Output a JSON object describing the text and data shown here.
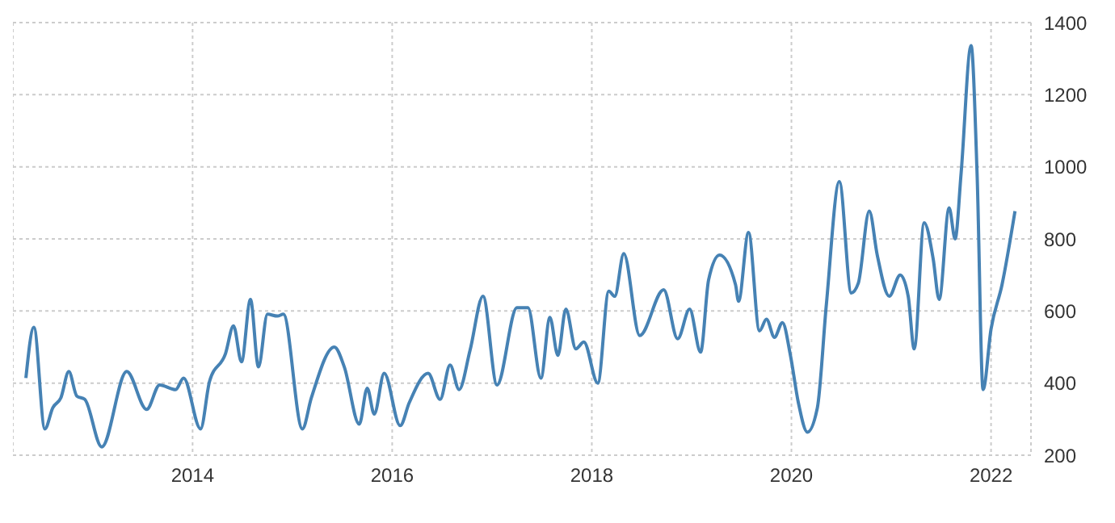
{
  "chart_data": {
    "type": "line",
    "x": [
      2012.33,
      2012.41,
      2012.52,
      2012.6,
      2012.68,
      2012.76,
      2012.84,
      2012.92,
      2013.09,
      2013.34,
      2013.54,
      2013.67,
      2013.83,
      2013.91,
      2014.08,
      2014.17,
      2014.33,
      2014.41,
      2014.49,
      2014.58,
      2014.66,
      2014.75,
      2014.85,
      2014.91,
      2015.1,
      2015.19,
      2015.42,
      2015.52,
      2015.67,
      2015.75,
      2015.82,
      2015.92,
      2016.08,
      2016.17,
      2016.36,
      2016.48,
      2016.58,
      2016.67,
      2016.78,
      2016.91,
      2017.05,
      2017.25,
      2017.36,
      2017.49,
      2017.58,
      2017.66,
      2017.74,
      2017.84,
      2017.92,
      2018.06,
      2018.17,
      2018.23,
      2018.32,
      2018.48,
      2018.72,
      2018.86,
      2018.98,
      2019.09,
      2019.17,
      2019.28,
      2019.44,
      2019.47,
      2019.57,
      2019.68,
      2019.75,
      2019.83,
      2019.91,
      2019.99,
      2020.07,
      2020.16,
      2020.26,
      2020.35,
      2020.48,
      2020.6,
      2020.67,
      2020.78,
      2020.86,
      2020.98,
      2021.09,
      2021.17,
      2021.23,
      2021.33,
      2021.42,
      2021.48,
      2021.58,
      2021.64,
      2021.7,
      2021.8,
      2021.86,
      2021.92,
      2022,
      2022.11,
      2022.24
    ],
    "series": [
      {
        "color": "#4682b4",
        "values": [
          414,
          555,
          273,
          332,
          359,
          432,
          364,
          355,
          223,
          432,
          327,
          395,
          382,
          414,
          273,
          405,
          482,
          559,
          459,
          632,
          445,
          591,
          586,
          591,
          273,
          359,
          500,
          445,
          286,
          386,
          314,
          427,
          282,
          345,
          427,
          355,
          450,
          382,
          491,
          641,
          395,
          609,
          609,
          414,
          582,
          477,
          605,
          495,
          514,
          400,
          655,
          641,
          759,
          532,
          659,
          523,
          605,
          486,
          686,
          755,
          673,
          627,
          818,
          545,
          577,
          527,
          568,
          477,
          345,
          264,
          332,
          618,
          959,
          650,
          677,
          877,
          755,
          641,
          700,
          641,
          495,
          845,
          745,
          632,
          886,
          800,
          982,
          1336,
          982,
          382,
          550,
          673,
          877
        ]
      }
    ],
    "xlim": [
      2012.2,
      2022.4
    ],
    "xticks": [
      2014,
      2016,
      2018,
      2020,
      2022
    ],
    "ylim": [
      200,
      1400
    ],
    "yticks": [
      200,
      400,
      600,
      800,
      1000,
      1200,
      1400
    ],
    "grid": true,
    "marker": "none",
    "line_style": "solid"
  }
}
